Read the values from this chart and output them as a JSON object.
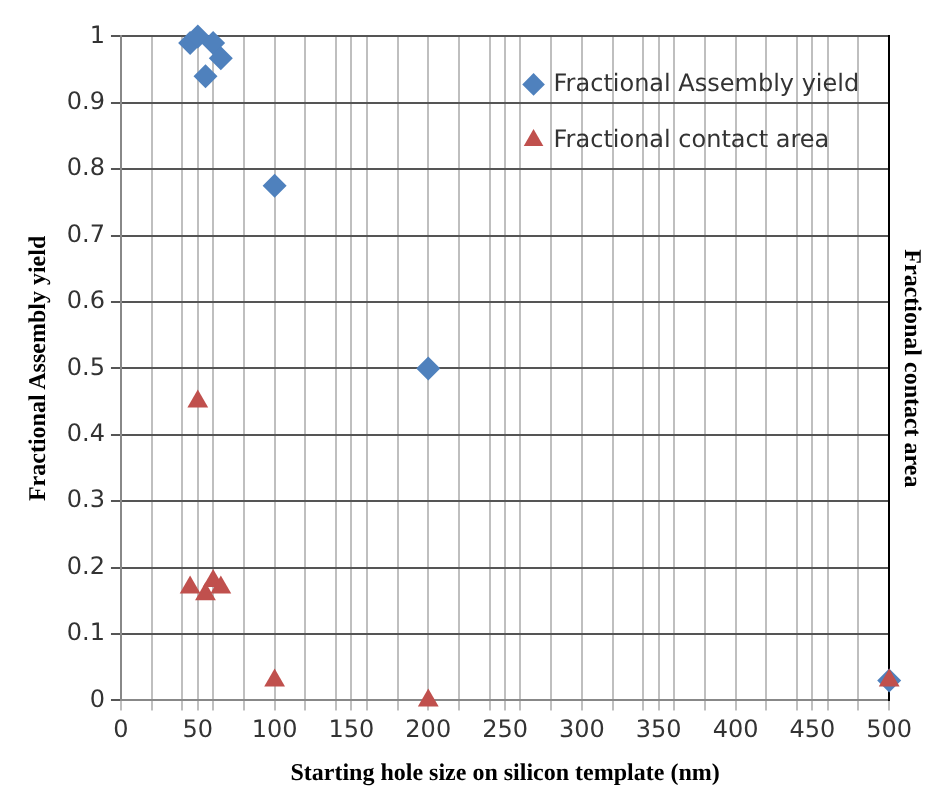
{
  "chart_data": {
    "type": "scatter",
    "xlabel": "Starting hole size on silicon template (nm)",
    "ylabel": "Fractional Assembly yield",
    "y2label": "Fractional contact area",
    "series": [
      {
        "name": "Fractional Assembly yield",
        "color": "#4f81bd",
        "marker": "diamond",
        "x": [
          45,
          50,
          55,
          60,
          65,
          100,
          200,
          500
        ],
        "values": [
          0.99,
          1.0,
          0.94,
          0.99,
          0.967,
          0.775,
          0.5,
          0.03
        ]
      },
      {
        "name": "Fractional contact area",
        "color": "#c0504d",
        "marker": "triangle",
        "x": [
          45,
          50,
          55,
          60,
          65,
          100,
          200,
          500
        ],
        "values": [
          0.17,
          0.45,
          0.16,
          0.18,
          0.17,
          0.03,
          0,
          0.03
        ]
      }
    ],
    "xlim": [
      0,
      500
    ],
    "xticks": [
      0,
      {
        "value": 20,
        "label": null
      },
      {
        "value": 40,
        "label": null
      },
      50,
      {
        "value": 60,
        "label": null
      },
      {
        "value": 80,
        "label": null
      },
      100,
      {
        "value": 120,
        "label": null
      },
      {
        "value": 140,
        "label": null
      },
      150,
      {
        "value": 160,
        "label": null
      },
      {
        "value": 180,
        "label": null
      },
      200,
      {
        "value": 220,
        "label": null
      },
      {
        "value": 240,
        "label": null
      },
      250,
      {
        "value": 260,
        "label": null
      },
      {
        "value": 280,
        "label": null
      },
      300,
      {
        "value": 320,
        "label": null
      },
      {
        "value": 340,
        "label": null
      },
      350,
      {
        "value": 360,
        "label": null
      },
      {
        "value": 380,
        "label": null
      },
      400,
      {
        "value": 420,
        "label": null
      },
      {
        "value": 440,
        "label": null
      },
      450,
      {
        "value": 460,
        "label": null
      },
      {
        "value": 480,
        "label": null
      },
      500
    ],
    "ylim": [
      0,
      1
    ],
    "yticks": [
      0,
      0.1,
      0.2,
      0.3,
      0.4,
      0.5,
      0.6,
      0.7,
      0.8,
      0.9,
      1
    ],
    "grid": true,
    "legend": "top right"
  }
}
